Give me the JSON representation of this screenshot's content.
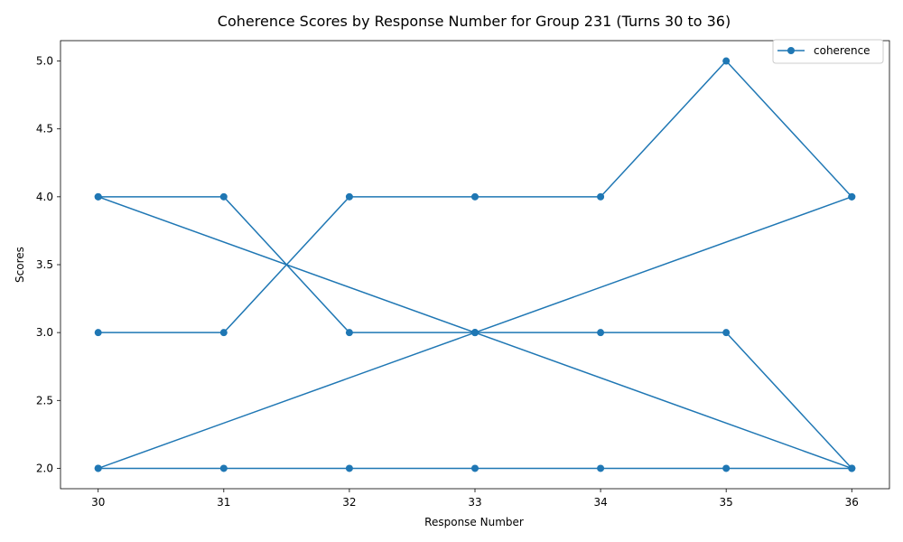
{
  "chart_data": {
    "type": "line",
    "title": "Coherence Scores by Response Number for Group 231 (Turns 30 to 36)",
    "xlabel": "Response Number",
    "ylabel": "Scores",
    "xlim": [
      29.7,
      36.3
    ],
    "ylim": [
      1.85,
      5.15
    ],
    "xticks": [
      30,
      31,
      32,
      33,
      34,
      35,
      36
    ],
    "yticks": [
      "2.0",
      "2.5",
      "3.0",
      "3.5",
      "4.0",
      "4.5",
      "5.0"
    ],
    "grid": false,
    "legend_position": "top-right",
    "series": [
      {
        "name": "coherence",
        "color": "#1f77b4",
        "marker": "circle",
        "points": [
          [
            30,
            3
          ],
          [
            31,
            3
          ],
          [
            32,
            4
          ],
          [
            33,
            4
          ],
          [
            34,
            4
          ],
          [
            35,
            5
          ],
          [
            36,
            4
          ],
          [
            30,
            2
          ],
          [
            31,
            2
          ],
          [
            32,
            2
          ],
          [
            33,
            2
          ],
          [
            34,
            2
          ],
          [
            35,
            2
          ],
          [
            36,
            2
          ],
          [
            30,
            4
          ],
          [
            31,
            4
          ],
          [
            32,
            3
          ],
          [
            33,
            3
          ],
          [
            34,
            3
          ],
          [
            35,
            3
          ],
          [
            36,
            2
          ],
          [
            30,
            4
          ],
          [
            33,
            3
          ],
          [
            36,
            2
          ],
          [
            30,
            2
          ],
          [
            33,
            3
          ],
          [
            36,
            4
          ]
        ]
      }
    ]
  }
}
